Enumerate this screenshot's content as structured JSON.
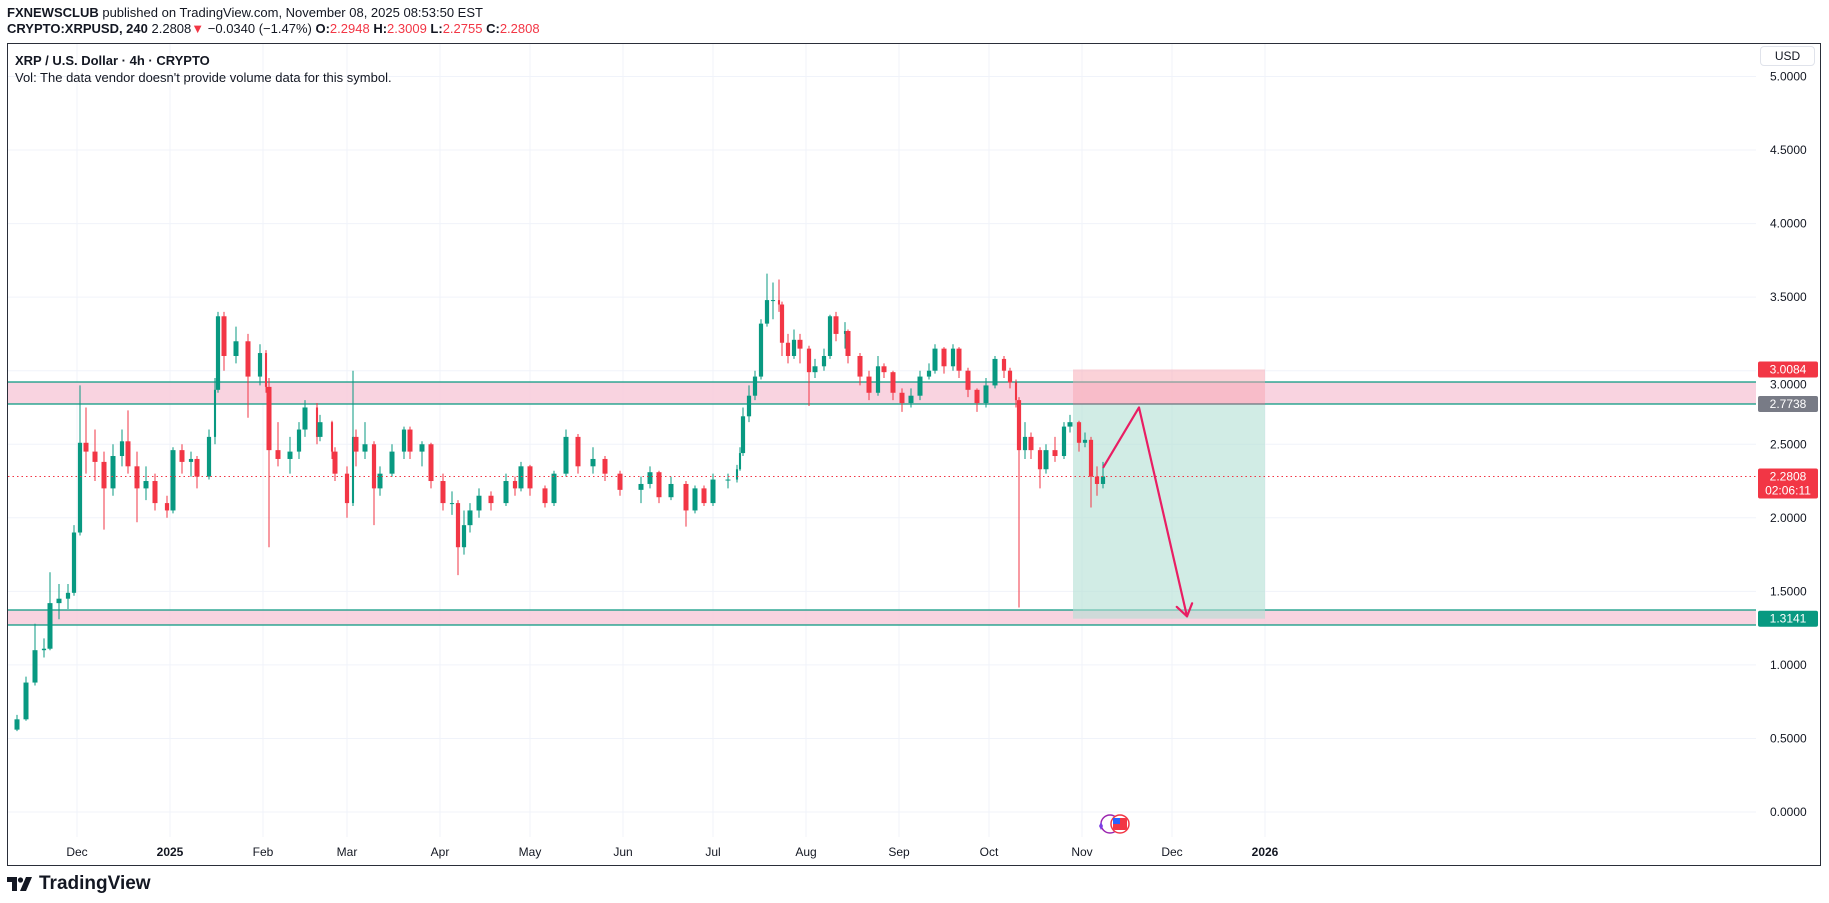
{
  "header": {
    "publisher": "FXNEWSCLUB",
    "published_text": "published on TradingView.com, November 08, 2025 08:53:50 EST",
    "symbol": "CRYPTO:XRPUSD, 240",
    "last": "2.2808",
    "change": "−0.0340 (−1.47%)",
    "o_label": "O:",
    "o": "2.2948",
    "h_label": "H:",
    "h": "2.3009",
    "l_label": "L:",
    "l": "2.2755",
    "c_label": "C:",
    "c": "2.2808"
  },
  "legend": {
    "title": "XRP / U.S. Dollar · 4h · CRYPTO",
    "vol": "Vol: The data vendor doesn't provide volume data for this symbol."
  },
  "currency_button": "USD",
  "brand": "TradingView",
  "colors": {
    "up": "#089981",
    "down": "#f23645",
    "zone": "#f8c8d8",
    "zone_line": "#089981",
    "profit": "#b2dfd3",
    "loss": "#f7a6b2",
    "arrow": "#e91e63"
  },
  "chart_data": {
    "type": "candlestick",
    "ylim": [
      -0.2,
      5.0
    ],
    "y_ticks": [
      "0.0000",
      "0.5000",
      "1.0000",
      "1.5000",
      "2.0000",
      "2.5000",
      "3.0000",
      "3.5000",
      "4.0000",
      "4.5000",
      "5.0000"
    ],
    "x_ticks": [
      {
        "date": "2024-12-01",
        "label": "Dec"
      },
      {
        "date": "2025-01-01",
        "label": "2025",
        "bold": true
      },
      {
        "date": "2025-02-01",
        "label": "Feb"
      },
      {
        "date": "2025-03-01",
        "label": "Mar"
      },
      {
        "date": "2025-04-01",
        "label": "Apr"
      },
      {
        "date": "2025-05-01",
        "label": "May"
      },
      {
        "date": "2025-06-01",
        "label": "Jun"
      },
      {
        "date": "2025-07-01",
        "label": "Jul"
      },
      {
        "date": "2025-08-01",
        "label": "Aug"
      },
      {
        "date": "2025-09-01",
        "label": "Sep"
      },
      {
        "date": "2025-10-01",
        "label": "Oct"
      },
      {
        "date": "2025-11-01",
        "label": "Nov"
      },
      {
        "date": "2025-12-01",
        "label": "Dec"
      },
      {
        "date": "2026-01-01",
        "label": "2026",
        "bold": true
      }
    ],
    "xlim": [
      "2024-11-05",
      "2026-05-31"
    ],
    "grid": true,
    "candles": [
      [
        "2024-11-07",
        0.55,
        0.57,
        0.54,
        0.56
      ],
      [
        "2024-11-11",
        0.56,
        0.66,
        0.55,
        0.63
      ],
      [
        "2024-11-14",
        0.63,
        0.92,
        0.62,
        0.88
      ],
      [
        "2024-11-17",
        0.88,
        1.28,
        0.86,
        1.1
      ],
      [
        "2024-11-20",
        1.1,
        1.18,
        1.05,
        1.11
      ],
      [
        "2024-11-22",
        1.11,
        1.63,
        1.1,
        1.42
      ],
      [
        "2024-11-25",
        1.42,
        1.55,
        1.31,
        1.45
      ],
      [
        "2024-11-28",
        1.45,
        1.55,
        1.38,
        1.49
      ],
      [
        "2024-11-30",
        1.49,
        1.95,
        1.47,
        1.9
      ],
      [
        "2024-12-02",
        1.9,
        2.9,
        1.88,
        2.51
      ],
      [
        "2024-12-04",
        2.51,
        2.75,
        2.3,
        2.45
      ],
      [
        "2024-12-07",
        2.45,
        2.6,
        2.25,
        2.38
      ],
      [
        "2024-12-10",
        2.38,
        2.45,
        1.92,
        2.2
      ],
      [
        "2024-12-13",
        2.2,
        2.5,
        2.15,
        2.42
      ],
      [
        "2024-12-16",
        2.42,
        2.6,
        2.35,
        2.52
      ],
      [
        "2024-12-18",
        2.52,
        2.73,
        2.3,
        2.35
      ],
      [
        "2024-12-21",
        2.35,
        2.45,
        1.97,
        2.2
      ],
      [
        "2024-12-24",
        2.2,
        2.35,
        2.12,
        2.25
      ],
      [
        "2024-12-27",
        2.25,
        2.3,
        2.05,
        2.1
      ],
      [
        "2024-12-31",
        2.1,
        2.15,
        2.0,
        2.05
      ],
      [
        "2025-01-02",
        2.05,
        2.48,
        2.03,
        2.46
      ],
      [
        "2025-01-05",
        2.46,
        2.5,
        2.3,
        2.38
      ],
      [
        "2025-01-08",
        2.38,
        2.45,
        2.28,
        2.4
      ],
      [
        "2025-01-10",
        2.4,
        2.42,
        2.2,
        2.28
      ],
      [
        "2025-01-14",
        2.28,
        2.6,
        2.26,
        2.55
      ],
      [
        "2025-01-16",
        2.55,
        2.95,
        2.5,
        2.87
      ],
      [
        "2025-01-17",
        2.87,
        3.4,
        2.85,
        3.37
      ],
      [
        "2025-01-19",
        3.37,
        3.4,
        3.0,
        3.1
      ],
      [
        "2025-01-23",
        3.1,
        3.3,
        3.05,
        3.2
      ],
      [
        "2025-01-27",
        3.2,
        3.25,
        2.68,
        2.96
      ],
      [
        "2025-01-31",
        2.96,
        3.18,
        2.9,
        3.12
      ],
      [
        "2025-02-02",
        3.12,
        3.14,
        2.85,
        2.89
      ],
      [
        "2025-02-03",
        2.89,
        2.95,
        1.8,
        2.46
      ],
      [
        "2025-02-06",
        2.46,
        2.65,
        2.35,
        2.4
      ],
      [
        "2025-02-10",
        2.4,
        2.55,
        2.3,
        2.45
      ],
      [
        "2025-02-13",
        2.45,
        2.65,
        2.4,
        2.6
      ],
      [
        "2025-02-15",
        2.6,
        2.8,
        2.55,
        2.75
      ],
      [
        "2025-02-19",
        2.75,
        2.78,
        2.5,
        2.55
      ],
      [
        "2025-02-20",
        2.55,
        2.7,
        2.52,
        2.65
      ],
      [
        "2025-02-24",
        2.65,
        2.66,
        2.4,
        2.45
      ],
      [
        "2025-02-25",
        2.45,
        2.48,
        2.25,
        2.3
      ],
      [
        "2025-03-01",
        2.3,
        2.35,
        2.0,
        2.1
      ],
      [
        "2025-03-03",
        2.1,
        3.0,
        2.08,
        2.55
      ],
      [
        "2025-03-04",
        2.55,
        2.6,
        2.35,
        2.45
      ],
      [
        "2025-03-07",
        2.45,
        2.65,
        2.4,
        2.5
      ],
      [
        "2025-03-10",
        2.5,
        2.52,
        1.95,
        2.2
      ],
      [
        "2025-03-12",
        2.2,
        2.35,
        2.15,
        2.3
      ],
      [
        "2025-03-16",
        2.3,
        2.5,
        2.28,
        2.45
      ],
      [
        "2025-03-20",
        2.45,
        2.62,
        2.4,
        2.6
      ],
      [
        "2025-03-22",
        2.6,
        2.62,
        2.4,
        2.45
      ],
      [
        "2025-03-26",
        2.45,
        2.52,
        2.35,
        2.5
      ],
      [
        "2025-03-29",
        2.5,
        2.51,
        2.2,
        2.25
      ],
      [
        "2025-04-02",
        2.25,
        2.3,
        2.05,
        2.1
      ],
      [
        "2025-04-05",
        2.1,
        2.18,
        2.02,
        2.1
      ],
      [
        "2025-04-07",
        2.1,
        2.12,
        1.61,
        1.8
      ],
      [
        "2025-04-09",
        1.8,
        2.05,
        1.75,
        1.95
      ],
      [
        "2025-04-11",
        1.95,
        2.1,
        1.9,
        2.05
      ],
      [
        "2025-04-14",
        2.05,
        2.2,
        2.0,
        2.15
      ],
      [
        "2025-04-18",
        2.15,
        2.18,
        2.05,
        2.1
      ],
      [
        "2025-04-23",
        2.1,
        2.3,
        2.08,
        2.25
      ],
      [
        "2025-04-26",
        2.25,
        2.28,
        2.15,
        2.2
      ],
      [
        "2025-04-28",
        2.2,
        2.38,
        2.18,
        2.35
      ],
      [
        "2025-05-01",
        2.35,
        2.36,
        2.15,
        2.2
      ],
      [
        "2025-05-06",
        2.2,
        2.22,
        2.07,
        2.1
      ],
      [
        "2025-05-09",
        2.1,
        2.32,
        2.08,
        2.3
      ],
      [
        "2025-05-13",
        2.3,
        2.6,
        2.28,
        2.55
      ],
      [
        "2025-05-17",
        2.55,
        2.57,
        2.3,
        2.35
      ],
      [
        "2025-05-22",
        2.35,
        2.48,
        2.3,
        2.4
      ],
      [
        "2025-05-26",
        2.4,
        2.42,
        2.25,
        2.3
      ],
      [
        "2025-05-31",
        2.3,
        2.32,
        2.15,
        2.19
      ],
      [
        "2025-06-07",
        2.19,
        2.28,
        2.1,
        2.23
      ],
      [
        "2025-06-10",
        2.23,
        2.35,
        2.2,
        2.31
      ],
      [
        "2025-06-13",
        2.31,
        2.32,
        2.1,
        2.14
      ],
      [
        "2025-06-17",
        2.14,
        2.28,
        2.12,
        2.23
      ],
      [
        "2025-06-22",
        2.23,
        2.25,
        1.94,
        2.05
      ],
      [
        "2025-06-25",
        2.05,
        2.22,
        2.03,
        2.2
      ],
      [
        "2025-06-28",
        2.2,
        2.22,
        2.08,
        2.1
      ],
      [
        "2025-07-01",
        2.1,
        2.3,
        2.08,
        2.26
      ],
      [
        "2025-07-06",
        2.26,
        2.3,
        2.2,
        2.26
      ],
      [
        "2025-07-09",
        2.26,
        2.36,
        2.24,
        2.33
      ],
      [
        "2025-07-10",
        2.33,
        2.48,
        2.32,
        2.44
      ],
      [
        "2025-07-11",
        2.44,
        2.75,
        2.42,
        2.69
      ],
      [
        "2025-07-13",
        2.69,
        2.9,
        2.65,
        2.83
      ],
      [
        "2025-07-15",
        2.83,
        3.0,
        2.8,
        2.96
      ],
      [
        "2025-07-17",
        2.96,
        3.35,
        2.94,
        3.32
      ],
      [
        "2025-07-19",
        3.32,
        3.66,
        3.3,
        3.48
      ],
      [
        "2025-07-21",
        3.48,
        3.6,
        3.35,
        3.48
      ],
      [
        "2025-07-23",
        3.48,
        3.62,
        3.4,
        3.45
      ],
      [
        "2025-07-24",
        3.45,
        3.47,
        3.1,
        3.19
      ],
      [
        "2025-07-26",
        3.19,
        3.25,
        3.05,
        3.1
      ],
      [
        "2025-07-28",
        3.1,
        3.28,
        3.08,
        3.21
      ],
      [
        "2025-07-30",
        3.21,
        3.25,
        3.05,
        3.15
      ],
      [
        "2025-08-02",
        3.15,
        3.17,
        2.76,
        2.99
      ],
      [
        "2025-08-04",
        2.99,
        3.08,
        2.95,
        3.03
      ],
      [
        "2025-08-07",
        3.03,
        3.15,
        3.0,
        3.1
      ],
      [
        "2025-08-09",
        3.1,
        3.38,
        3.08,
        3.37
      ],
      [
        "2025-08-11",
        3.37,
        3.4,
        3.2,
        3.25
      ],
      [
        "2025-08-14",
        3.25,
        3.33,
        3.15,
        3.27
      ],
      [
        "2025-08-15",
        3.27,
        3.28,
        3.05,
        3.1
      ],
      [
        "2025-08-19",
        3.1,
        3.12,
        2.9,
        2.96
      ],
      [
        "2025-08-22",
        2.96,
        3.0,
        2.8,
        2.85
      ],
      [
        "2025-08-25",
        2.85,
        3.1,
        2.83,
        3.03
      ],
      [
        "2025-08-27",
        3.03,
        3.05,
        2.95,
        2.99
      ],
      [
        "2025-08-30",
        2.99,
        3.0,
        2.8,
        2.85
      ],
      [
        "2025-09-02",
        2.85,
        2.88,
        2.72,
        2.78
      ],
      [
        "2025-09-05",
        2.78,
        2.88,
        2.75,
        2.83
      ],
      [
        "2025-09-08",
        2.83,
        3.0,
        2.8,
        2.96
      ],
      [
        "2025-09-11",
        2.96,
        3.05,
        2.94,
        3.0
      ],
      [
        "2025-09-13",
        3.0,
        3.18,
        2.98,
        3.15
      ],
      [
        "2025-09-16",
        3.15,
        3.16,
        2.98,
        3.03
      ],
      [
        "2025-09-19",
        3.03,
        3.18,
        3.0,
        3.15
      ],
      [
        "2025-09-21",
        3.15,
        3.16,
        2.95,
        3.0
      ],
      [
        "2025-09-24",
        3.0,
        3.02,
        2.82,
        2.87
      ],
      [
        "2025-09-27",
        2.87,
        2.88,
        2.72,
        2.78
      ],
      [
        "2025-09-30",
        2.78,
        2.95,
        2.75,
        2.9
      ],
      [
        "2025-10-03",
        2.9,
        3.1,
        2.88,
        3.08
      ],
      [
        "2025-10-06",
        3.08,
        3.1,
        2.95,
        3.0
      ],
      [
        "2025-10-08",
        3.0,
        3.02,
        2.88,
        2.92
      ],
      [
        "2025-10-10",
        2.92,
        2.94,
        2.75,
        2.8
      ],
      [
        "2025-10-11",
        2.8,
        2.82,
        1.39,
        2.46
      ],
      [
        "2025-10-13",
        2.46,
        2.65,
        2.4,
        2.55
      ],
      [
        "2025-10-15",
        2.55,
        2.58,
        2.4,
        2.46
      ],
      [
        "2025-10-18",
        2.46,
        2.48,
        2.2,
        2.33
      ],
      [
        "2025-10-20",
        2.33,
        2.5,
        2.3,
        2.46
      ],
      [
        "2025-10-23",
        2.46,
        2.55,
        2.38,
        2.42
      ],
      [
        "2025-10-26",
        2.42,
        2.65,
        2.4,
        2.62
      ],
      [
        "2025-10-28",
        2.62,
        2.7,
        2.58,
        2.65
      ],
      [
        "2025-10-31",
        2.65,
        2.66,
        2.45,
        2.51
      ],
      [
        "2025-11-02",
        2.51,
        2.58,
        2.48,
        2.53
      ],
      [
        "2025-11-04",
        2.53,
        2.55,
        2.07,
        2.28
      ],
      [
        "2025-11-06",
        2.28,
        2.35,
        2.15,
        2.23
      ],
      [
        "2025-11-08",
        2.23,
        2.38,
        2.2,
        2.2808
      ]
    ],
    "zones": [
      [
        2.7738,
        2.923
      ],
      [
        1.271,
        1.373
      ]
    ],
    "short_position": {
      "start": "2025-10-29",
      "end": "2026-01-01",
      "stop": 3.0084,
      "entry": 2.7738,
      "target": 1.3141
    },
    "projection_path": [
      [
        "2025-11-08",
        2.34
      ],
      [
        "2025-11-20",
        2.75
      ],
      [
        "2025-12-06",
        1.33
      ]
    ],
    "price_labels": [
      {
        "value": 3.0084,
        "text": "3.0084",
        "color": "#f23645"
      },
      {
        "value": 2.7738,
        "text": "2.7738",
        "color": "#787b86"
      },
      {
        "value": 2.2808,
        "text": "2.2808",
        "sub": "02:06:11",
        "color": "#f23645"
      },
      {
        "value": 1.3141,
        "text": "1.3141",
        "color": "#089981"
      }
    ],
    "last_price": 2.2808
  }
}
